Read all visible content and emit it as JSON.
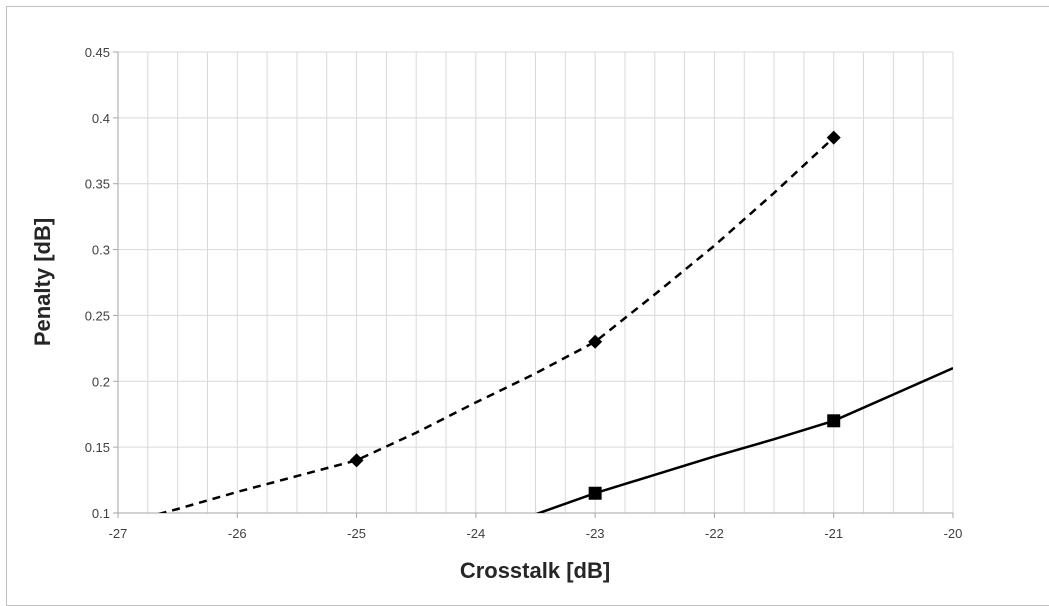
{
  "chart_data": {
    "type": "line",
    "title": "",
    "xlabel": "Crosstalk [dB]",
    "ylabel": "Penalty [dB]",
    "xlim": [
      -27,
      -20
    ],
    "ylim": [
      0.1,
      0.45
    ],
    "x_ticks": [
      -27,
      -26,
      -25,
      -24,
      -23,
      -22,
      -21,
      -20
    ],
    "y_ticks": [
      0.1,
      0.15,
      0.2,
      0.25,
      0.3,
      0.35,
      0.4,
      0.45
    ],
    "x_minor_step": 0.25,
    "grid": true,
    "legend": "none",
    "series": [
      {
        "marker": "diamond",
        "line_style": "dashed",
        "color": "#000000",
        "x": [
          -25,
          -23,
          -21
        ],
        "y": [
          0.14,
          0.23,
          0.385
        ],
        "curve_x": [
          -27,
          -26.5,
          -26,
          -25.5,
          -25,
          -24.5,
          -24,
          -23.5,
          -23,
          -22.5,
          -22,
          -21.5,
          -21
        ],
        "curve_y": [
          0.091,
          0.103,
          0.116,
          0.128,
          0.14,
          0.161,
          0.184,
          0.206,
          0.23,
          0.266,
          0.303,
          0.343,
          0.385
        ]
      },
      {
        "marker": "square",
        "line_style": "solid",
        "color": "#000000",
        "x": [
          -23,
          -21
        ],
        "y": [
          0.115,
          0.17
        ],
        "curve_x": [
          -23.8,
          -23.5,
          -23,
          -22.5,
          -22,
          -21.5,
          -21,
          -20.5,
          -20
        ],
        "curve_y": [
          0.09,
          0.099,
          0.115,
          0.129,
          0.143,
          0.156,
          0.17,
          0.19,
          0.21
        ]
      }
    ]
  }
}
